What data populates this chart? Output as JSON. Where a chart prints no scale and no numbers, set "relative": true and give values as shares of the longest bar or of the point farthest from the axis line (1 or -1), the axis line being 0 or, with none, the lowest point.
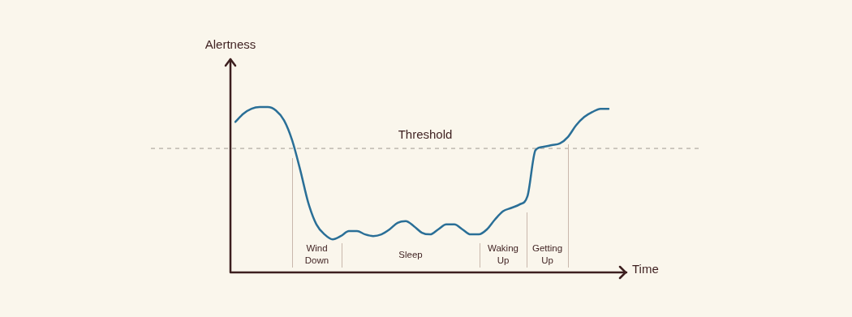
{
  "chart_data": {
    "type": "line",
    "relative": true,
    "xlabel": "Time",
    "ylabel": "Alertness",
    "marker": "none",
    "line_style": "solid",
    "categories": [
      null,
      null,
      null,
      null,
      null,
      null,
      null,
      null,
      null,
      null,
      null,
      null,
      null,
      null,
      null,
      null,
      null,
      null,
      null,
      null,
      null,
      null,
      null,
      null,
      null,
      null,
      null,
      null,
      null,
      null,
      null,
      null,
      null,
      null,
      null,
      null,
      null,
      null,
      null,
      null,
      null,
      null,
      null,
      null,
      null,
      null,
      null
    ],
    "series": [
      {
        "color": "#2a6f97",
        "values": [
          0.91,
          0.96,
          0.99,
          1.0,
          1.0,
          0.98,
          0.92,
          0.8,
          0.62,
          0.42,
          0.29,
          0.23,
          0.2,
          0.22,
          0.25,
          0.25,
          0.23,
          0.22,
          0.23,
          0.26,
          0.3,
          0.31,
          0.28,
          0.24,
          0.23,
          0.26,
          0.29,
          0.29,
          0.26,
          0.23,
          0.23,
          0.26,
          0.32,
          0.37,
          0.39,
          0.41,
          0.46,
          0.74,
          0.76,
          0.77,
          0.78,
          0.82,
          0.89,
          0.94,
          0.97,
          0.99,
          0.99
        ]
      }
    ],
    "ref_lines": [
      {
        "axis": "y",
        "value": 0.75,
        "label": "Threshold",
        "color": "#a09a92",
        "line_style": "dashed"
      }
    ],
    "annotations": [
      "Wind Down",
      "Sleep",
      "Waking Up",
      "Getting Up"
    ]
  }
}
